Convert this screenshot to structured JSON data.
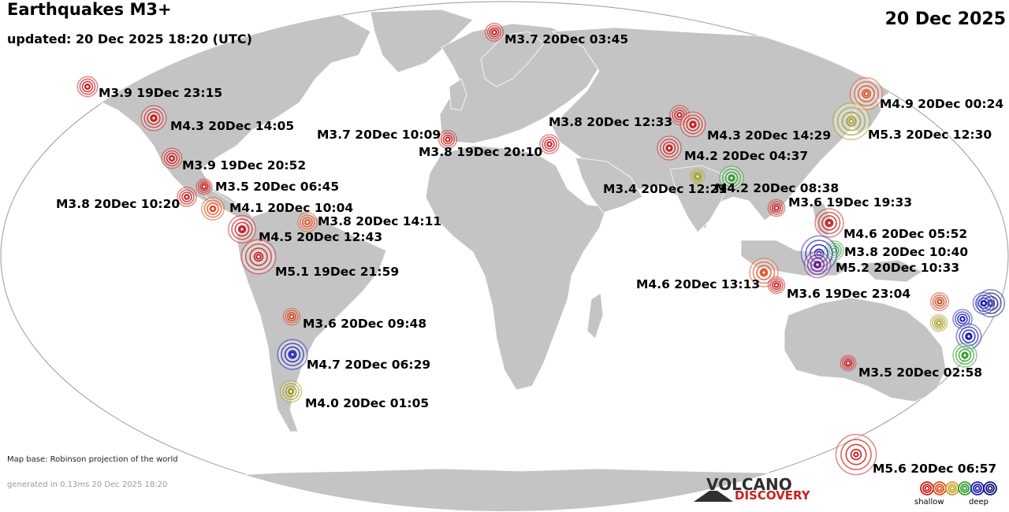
{
  "header": {
    "title": "Earthquakes M3+",
    "updated": "updated: 20 Dec 2025 18:20 (UTC)",
    "date": "20 Dec 2025"
  },
  "footer": {
    "map_base": "Map base: Robinson projection of the world",
    "generated": "generated in 0.13ms 20 Dec 2025 18:20"
  },
  "logo": {
    "top": "VOLCANO",
    "bottom": "DISCOVERY"
  },
  "legend": {
    "shallow_label": "shallow",
    "deep_label": "deep",
    "depth_colors": [
      "#c81e1e",
      "#e0501e",
      "#c8a028",
      "#2ca02c",
      "#1e1eb4",
      "#141478"
    ]
  },
  "colors": {
    "ocean": "#ffffff",
    "land": "#c4c4c4",
    "border": "#ffffff",
    "outline": "#9a9a9a"
  },
  "quakes": [
    {
      "label": "M3.7 20Dec 03:45",
      "mag": 3.7,
      "color": "#c81e1e"
    },
    {
      "label": "M3.9 19Dec 23:15",
      "mag": 3.9,
      "color": "#c81e1e"
    },
    {
      "label": "M4.3 20Dec 14:05",
      "mag": 4.3,
      "color": "#c81e1e"
    },
    {
      "label": "M3.9 19Dec 20:52",
      "mag": 3.9,
      "color": "#c81e1e"
    },
    {
      "label": "M3.5 20Dec 06:45",
      "mag": 3.5,
      "color": "#c81e1e"
    },
    {
      "label": "M3.8 20Dec 10:20",
      "mag": 3.8,
      "color": "#c81e1e"
    },
    {
      "label": "M4.1 20Dec 10:04",
      "mag": 4.1,
      "color": "#e0501e"
    },
    {
      "label": "M3.8 20Dec 14:11",
      "mag": 3.8,
      "color": "#e0501e"
    },
    {
      "label": "M4.5 20Dec 12:43",
      "mag": 4.5,
      "color": "#c81e1e"
    },
    {
      "label": "M5.1 19Dec 21:59",
      "mag": 5.1,
      "color": "#c81e1e"
    },
    {
      "label": "M3.6 20Dec 09:48",
      "mag": 3.6,
      "color": "#c8401e"
    },
    {
      "label": "M4.7 20Dec 06:29",
      "mag": 4.7,
      "color": "#1e1eb4"
    },
    {
      "label": "M4.0 20Dec 01:05",
      "mag": 4.0,
      "color": "#a09a20"
    },
    {
      "label": "M3.7 20Dec 10:09",
      "mag": 3.7,
      "color": "#c81e1e"
    },
    {
      "label": "M3.8 19Dec 20:10",
      "mag": 3.8,
      "color": "#c81e1e"
    },
    {
      "label": "M3.8 20Dec 12:33",
      "mag": 3.8,
      "color": "#c81e1e"
    },
    {
      "label": "M4.3 20Dec 14:29",
      "mag": 4.3,
      "color": "#c81e1e"
    },
    {
      "label": "M4.2 20Dec 04:37",
      "mag": 4.2,
      "color": "#c81e1e"
    },
    {
      "label": "M3.4 20Dec 12:21",
      "mag": 3.4,
      "color": "#a09a20"
    },
    {
      "label": "M4.2 20Dec 08:38",
      "mag": 4.2,
      "color": "#2ca02c"
    },
    {
      "label": "M4.9 20Dec 00:24",
      "mag": 4.9,
      "color": "#e0501e"
    },
    {
      "label": "M5.3 20Dec 12:30",
      "mag": 5.3,
      "color": "#a09a20"
    },
    {
      "label": "M3.6 19Dec 19:33",
      "mag": 3.6,
      "color": "#c81e1e"
    },
    {
      "label": "M4.6 20Dec 05:52",
      "mag": 4.6,
      "color": "#c81e1e"
    },
    {
      "label": "M3.8 20Dec 10:40",
      "mag": 3.8,
      "color": "#2ca02c"
    },
    {
      "label": "M5.2 20Dec 10:33",
      "mag": 5.2,
      "color": "#1e1eb4"
    },
    {
      "label": "M4.6 20Dec 13:13",
      "mag": 4.6,
      "color": "#e0501e"
    },
    {
      "label": "M3.6 19Dec 23:04",
      "mag": 3.6,
      "color": "#c81e1e"
    },
    {
      "label": "M3.5 20Dec 02:58",
      "mag": 3.5,
      "color": "#c81e1e"
    },
    {
      "label": "M5.6 20Dec 06:57",
      "mag": 5.6,
      "color": "#c81e1e"
    },
    {
      "label": "",
      "mag": 3.7,
      "color": "#c8401e"
    },
    {
      "label": "",
      "mag": 4.5,
      "color": "#141478"
    },
    {
      "label": "",
      "mag": 3.6,
      "color": "#a09a20"
    },
    {
      "label": "",
      "mag": 3.8,
      "color": "#1e1eb4"
    },
    {
      "label": "",
      "mag": 4.3,
      "color": "#1e1eb4"
    },
    {
      "label": "",
      "mag": 4.2,
      "color": "#2ca02c"
    },
    {
      "label": "",
      "mag": 4.0,
      "color": "#1e1eb4"
    },
    {
      "label": "",
      "mag": 4.4,
      "color": "#6a1e8a"
    }
  ]
}
